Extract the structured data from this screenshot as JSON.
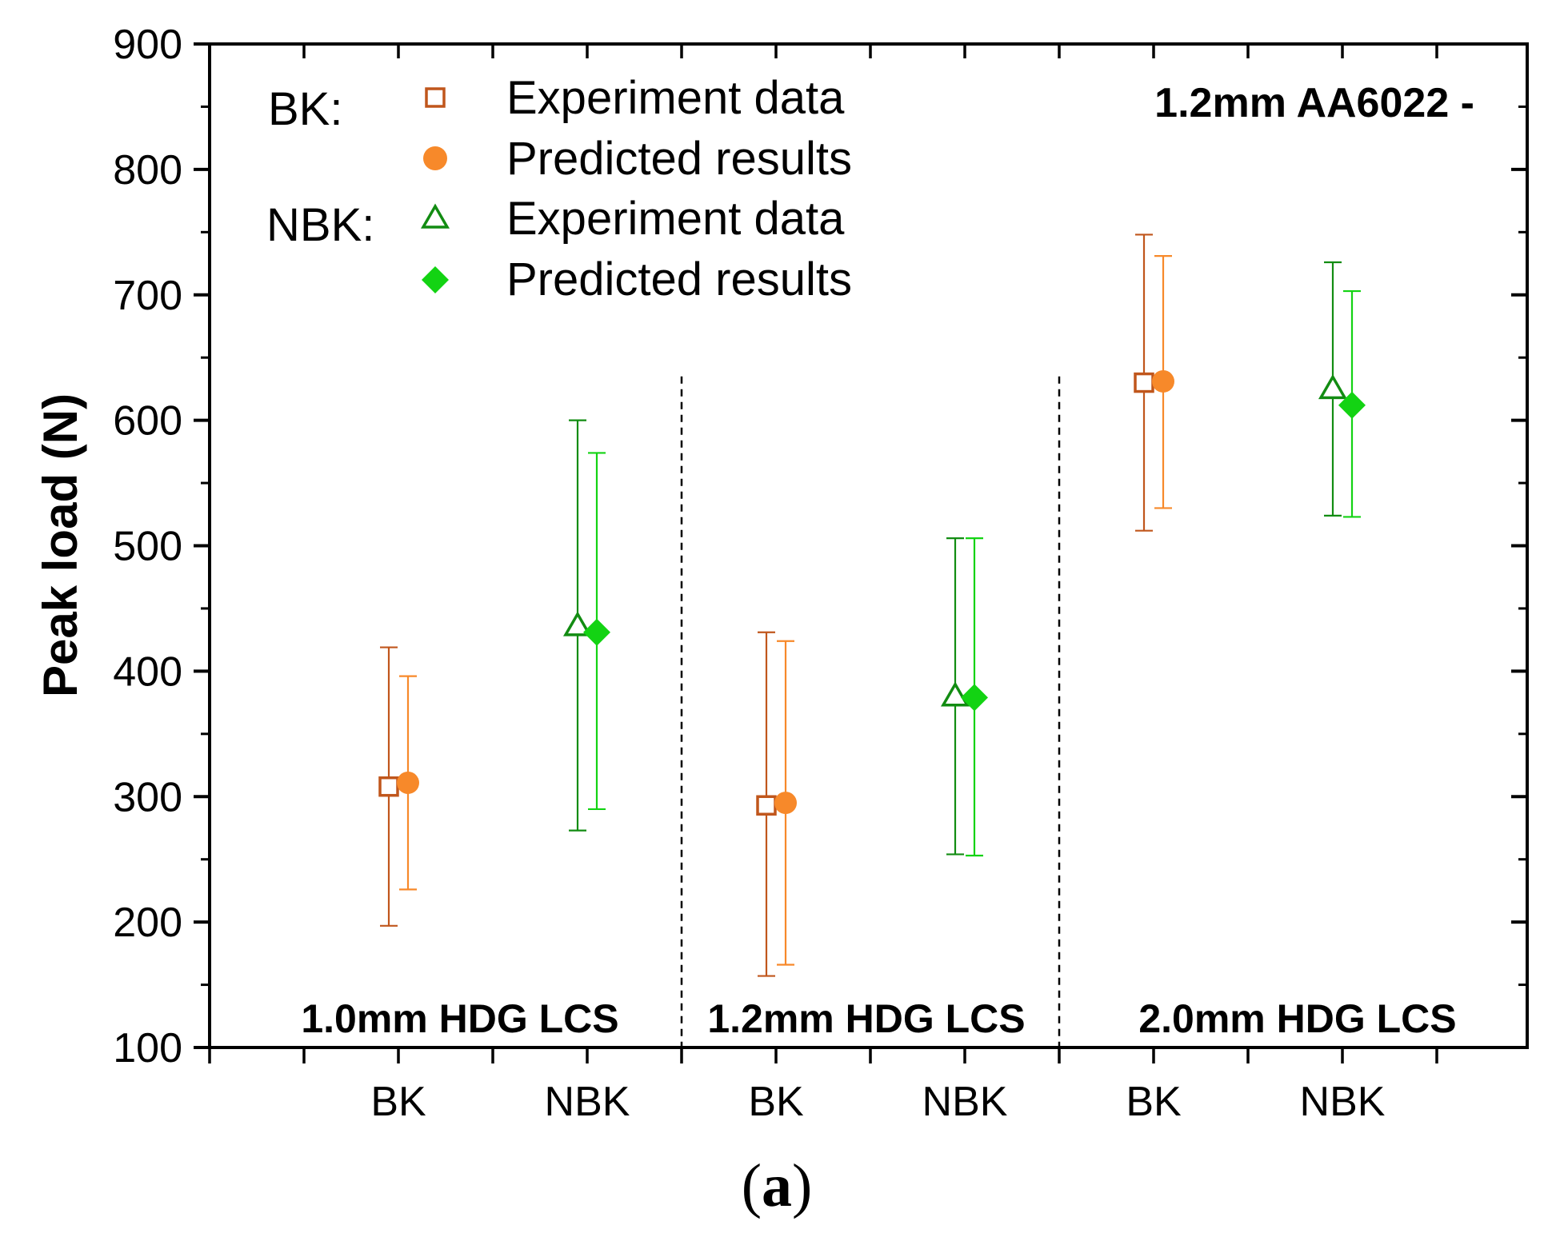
{
  "chart_data": {
    "type": "scatter",
    "title": "1.2mm AA6022 -",
    "ylabel": "Peak load (N)",
    "xlabel": "",
    "ylim": [
      100,
      900
    ],
    "yticks": [
      100,
      200,
      300,
      400,
      500,
      600,
      700,
      800,
      900
    ],
    "yticks_labels": [
      "100",
      "200",
      "300",
      "400",
      "500",
      "600",
      "700",
      "800",
      "900"
    ],
    "categories": [
      "BK",
      "NBK",
      "BK",
      "NBK",
      "BK",
      "NBK"
    ],
    "groups": [
      "1.0mm HDG LCS",
      "1.2mm HDG LCS",
      "2.0mm HDG LCS"
    ],
    "grid": false,
    "legend": {
      "placement": "top-left",
      "bk_title": "BK:",
      "nbk_title": "NBK:",
      "entries": [
        "Experiment data",
        "Predicted results",
        "Experiment data",
        "Predicted results"
      ]
    },
    "series": [
      {
        "name": "BK: Experiment data",
        "marker": "open-square",
        "color": "#c0561c",
        "x": [
          1,
          3,
          5
        ],
        "y": [
          308,
          293,
          630
        ],
        "err_low": [
          197,
          157,
          512
        ],
        "err_high": [
          419,
          431,
          748
        ]
      },
      {
        "name": "BK: Predicted results",
        "marker": "filled-circle",
        "color": "#f7892a",
        "x": [
          1,
          3,
          5
        ],
        "y": [
          311,
          295,
          631
        ],
        "err_low": [
          226,
          166,
          530
        ],
        "err_high": [
          396,
          424,
          731
        ]
      },
      {
        "name": "NBK: Experiment data",
        "marker": "open-triangle",
        "color": "#128c12",
        "x": [
          2,
          4,
          6
        ],
        "y": [
          436,
          380,
          625
        ],
        "err_low": [
          273,
          254,
          524
        ],
        "err_high": [
          600,
          506,
          726
        ]
      },
      {
        "name": "NBK: Predicted results",
        "marker": "filled-diamond",
        "color": "#13d313",
        "x": [
          2,
          4,
          6
        ],
        "y": [
          431,
          379,
          612
        ],
        "err_low": [
          290,
          253,
          523
        ],
        "err_high": [
          574,
          506,
          703
        ]
      }
    ],
    "caption_open": "(",
    "caption_letter": "a",
    "caption_close": ")"
  }
}
